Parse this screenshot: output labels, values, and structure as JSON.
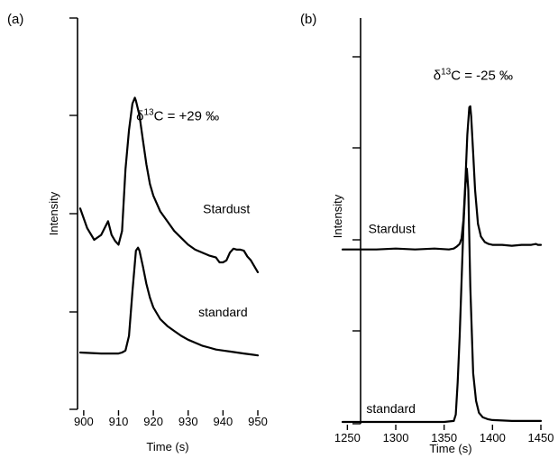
{
  "chart_data": [
    {
      "type": "line",
      "panel_label": "(a)",
      "xlabel": "Time (s)",
      "ylabel": "Intensity",
      "xlim": [
        899,
        950
      ],
      "xticks": [
        900,
        910,
        920,
        930,
        940,
        950
      ],
      "grid": false,
      "series": [
        {
          "name": "Stardust",
          "x": [
            899,
            901,
            903,
            905,
            907,
            908,
            909,
            910,
            911,
            912,
            913,
            914,
            914.7,
            915,
            916,
            917,
            918,
            919,
            920,
            922,
            924,
            926,
            928,
            930,
            932,
            934,
            936,
            938,
            939,
            940,
            941,
            942,
            943,
            944,
            945,
            946,
            947,
            948,
            949,
            950
          ],
          "y": [
            2.05,
            1.85,
            1.73,
            1.78,
            1.92,
            1.78,
            1.72,
            1.68,
            1.82,
            2.45,
            2.85,
            3.12,
            3.18,
            3.15,
            3.0,
            2.75,
            2.5,
            2.3,
            2.18,
            2.02,
            1.92,
            1.82,
            1.75,
            1.68,
            1.63,
            1.6,
            1.57,
            1.55,
            1.5,
            1.5,
            1.52,
            1.6,
            1.64,
            1.63,
            1.63,
            1.62,
            1.56,
            1.52,
            1.46,
            1.4
          ]
        },
        {
          "name": "standard",
          "x": [
            899,
            905,
            910,
            911,
            912,
            913,
            914,
            915,
            915.6,
            916,
            917,
            918,
            919,
            920,
            922,
            924,
            926,
            928,
            930,
            932,
            934,
            936,
            938,
            940,
            942,
            944,
            946,
            948,
            950
          ],
          "y": [
            0.58,
            0.57,
            0.57,
            0.58,
            0.6,
            0.75,
            1.2,
            1.62,
            1.65,
            1.62,
            1.46,
            1.28,
            1.14,
            1.04,
            0.92,
            0.85,
            0.8,
            0.75,
            0.71,
            0.68,
            0.65,
            0.63,
            0.61,
            0.6,
            0.59,
            0.58,
            0.57,
            0.56,
            0.55
          ]
        }
      ],
      "annotations": {
        "stardust": {
          "prefix": "δ",
          "sup": "13",
          "suffix": "C = +29 ‰",
          "x": 927,
          "y": 2.95
        },
        "label_stardust": {
          "text": "Stardust",
          "x": 941,
          "y": 2.0
        },
        "label_standard": {
          "text": "standard",
          "x": 940,
          "y": 0.95
        }
      }
    },
    {
      "type": "line",
      "panel_label": "(b)",
      "xlabel": "Time (s)",
      "ylabel": "Intensity",
      "xlim": [
        1245,
        1450
      ],
      "xticks": [
        1250,
        1300,
        1350,
        1400,
        1450
      ],
      "grid": false,
      "series": [
        {
          "name": "Stardust",
          "x": [
            1245,
            1260,
            1280,
            1300,
            1320,
            1340,
            1355,
            1360,
            1363,
            1366,
            1368,
            1370,
            1372,
            1374,
            1376,
            1377,
            1378,
            1380,
            1382,
            1385,
            1388,
            1392,
            1396,
            1400,
            1410,
            1420,
            1430,
            1440,
            1445,
            1447,
            1450
          ],
          "y": [
            1.9,
            1.9,
            1.9,
            1.91,
            1.9,
            1.91,
            1.9,
            1.91,
            1.93,
            1.96,
            2.02,
            2.22,
            2.65,
            3.15,
            3.45,
            3.46,
            3.35,
            2.95,
            2.55,
            2.18,
            2.04,
            1.98,
            1.96,
            1.95,
            1.95,
            1.94,
            1.95,
            1.95,
            1.96,
            1.95,
            1.95
          ]
        },
        {
          "name": "standard",
          "x": [
            1245,
            1270,
            1300,
            1330,
            1350,
            1360,
            1362,
            1364,
            1366,
            1368,
            1370,
            1372,
            1373.5,
            1375,
            1377,
            1380,
            1383,
            1386,
            1390,
            1395,
            1400,
            1420,
            1440,
            1450
          ],
          "y": [
            0.02,
            0.02,
            0.02,
            0.02,
            0.02,
            0.03,
            0.1,
            0.45,
            0.95,
            1.55,
            2.15,
            2.6,
            2.78,
            2.55,
            1.5,
            0.55,
            0.25,
            0.12,
            0.07,
            0.05,
            0.04,
            0.03,
            0.03,
            0.03
          ]
        }
      ],
      "annotations": {
        "stardust": {
          "prefix": "δ",
          "sup": "13",
          "suffix": "C = -25 ‰",
          "x": 1380,
          "y": 3.75
        },
        "label_stardust": {
          "text": "Stardust",
          "x": 1296,
          "y": 2.08
        },
        "label_standard": {
          "text": "standard",
          "x": 1295,
          "y": 0.12
        }
      }
    }
  ]
}
